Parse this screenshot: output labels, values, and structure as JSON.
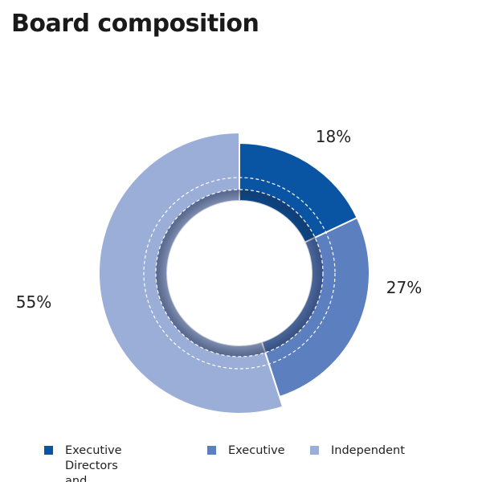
{
  "title": "Board composition",
  "chart_data": {
    "type": "pie",
    "style": "donut",
    "categories": [
      "Executive Directors\nand Promoters",
      "Executive",
      "Independent"
    ],
    "values": [
      18,
      27,
      55
    ],
    "data_labels": [
      "18%",
      "27%",
      "55%"
    ],
    "colors": [
      "#0a55a3",
      "#5b7fbf",
      "#9aaed8"
    ],
    "legend_position": "bottom"
  }
}
